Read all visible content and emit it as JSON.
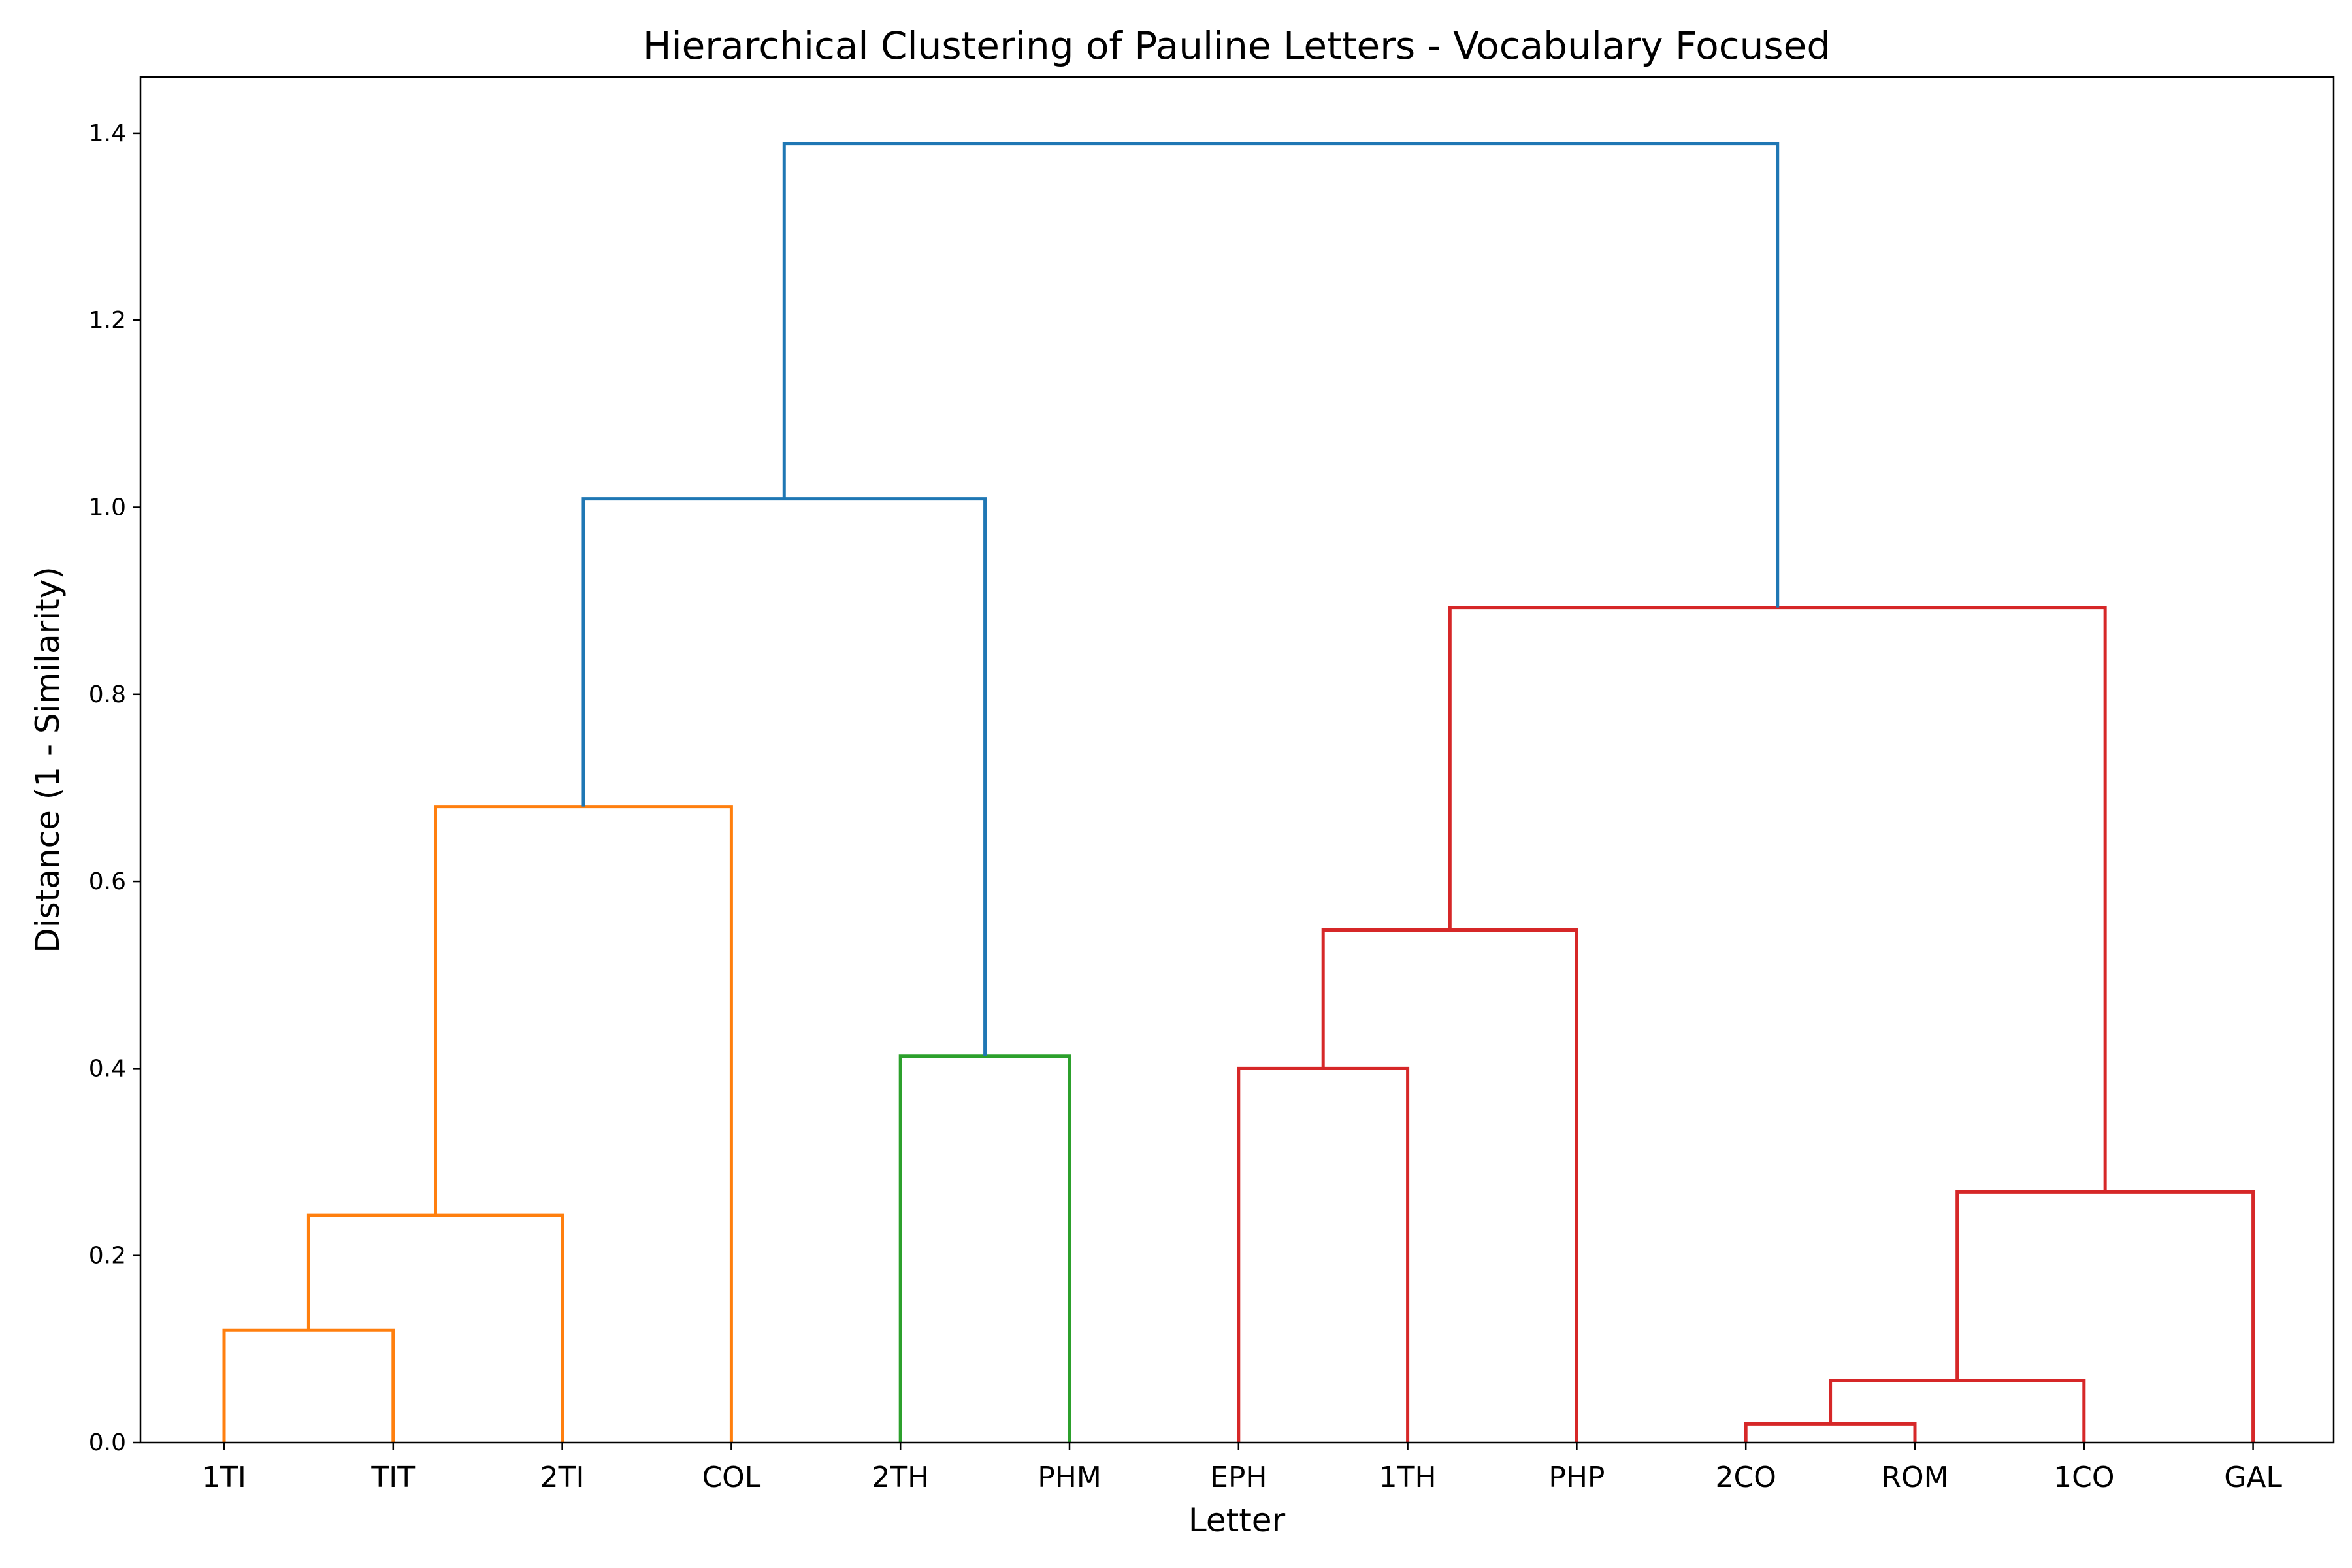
{
  "chart_data": {
    "type": "dendrogram",
    "title": "Hierarchical Clustering of Pauline Letters - Vocabulary Focused",
    "xlabel": "Letter",
    "ylabel": "Distance (1 - Similarity)",
    "ylim": [
      0,
      1.46
    ],
    "y_ticks": [
      "0.0",
      "0.2",
      "0.4",
      "0.6",
      "0.8",
      "1.0",
      "1.2",
      "1.4"
    ],
    "leaves": [
      "1TI",
      "TIT",
      "2TI",
      "COL",
      "2TH",
      "PHM",
      "EPH",
      "1TH",
      "PHP",
      "2CO",
      "ROM",
      "1CO",
      "GAL"
    ],
    "grid": false,
    "colors": {
      "orange": "#ff7f0e",
      "green": "#2ca02c",
      "red": "#d62728",
      "blue": "#1f77b4"
    },
    "merges": [
      {
        "left": "1TI",
        "right": "TIT",
        "height": 0.12,
        "color": "orange"
      },
      {
        "left": "1TI+TIT",
        "right": "2TI",
        "height": 0.243,
        "color": "orange"
      },
      {
        "left": "1TI+TIT+2TI",
        "right": "COL",
        "height": 0.68,
        "color": "orange"
      },
      {
        "left": "2TH",
        "right": "PHM",
        "height": 0.413,
        "color": "green"
      },
      {
        "left": "EPH",
        "right": "1TH",
        "height": 0.4,
        "color": "red"
      },
      {
        "left": "EPH+1TH",
        "right": "PHP",
        "height": 0.548,
        "color": "red"
      },
      {
        "left": "2CO",
        "right": "ROM",
        "height": 0.02,
        "color": "red"
      },
      {
        "left": "2CO+ROM",
        "right": "1CO",
        "height": 0.066,
        "color": "red"
      },
      {
        "left": "2CO+ROM+1CO",
        "right": "GAL",
        "height": 0.268,
        "color": "red"
      },
      {
        "left": "EPH+1TH+PHP",
        "right": "2CO+ROM+1CO+GAL",
        "height": 0.893,
        "color": "red"
      },
      {
        "left": "1TI+TIT+2TI+COL",
        "right": "2TH+PHM",
        "height": 1.009,
        "color": "blue"
      },
      {
        "left": "1TI+TIT+2TI+COL+2TH+PHM",
        "right": "EPH+1TH+PHP+2CO+ROM+1CO+GAL",
        "height": 1.389,
        "color": "blue"
      }
    ]
  }
}
